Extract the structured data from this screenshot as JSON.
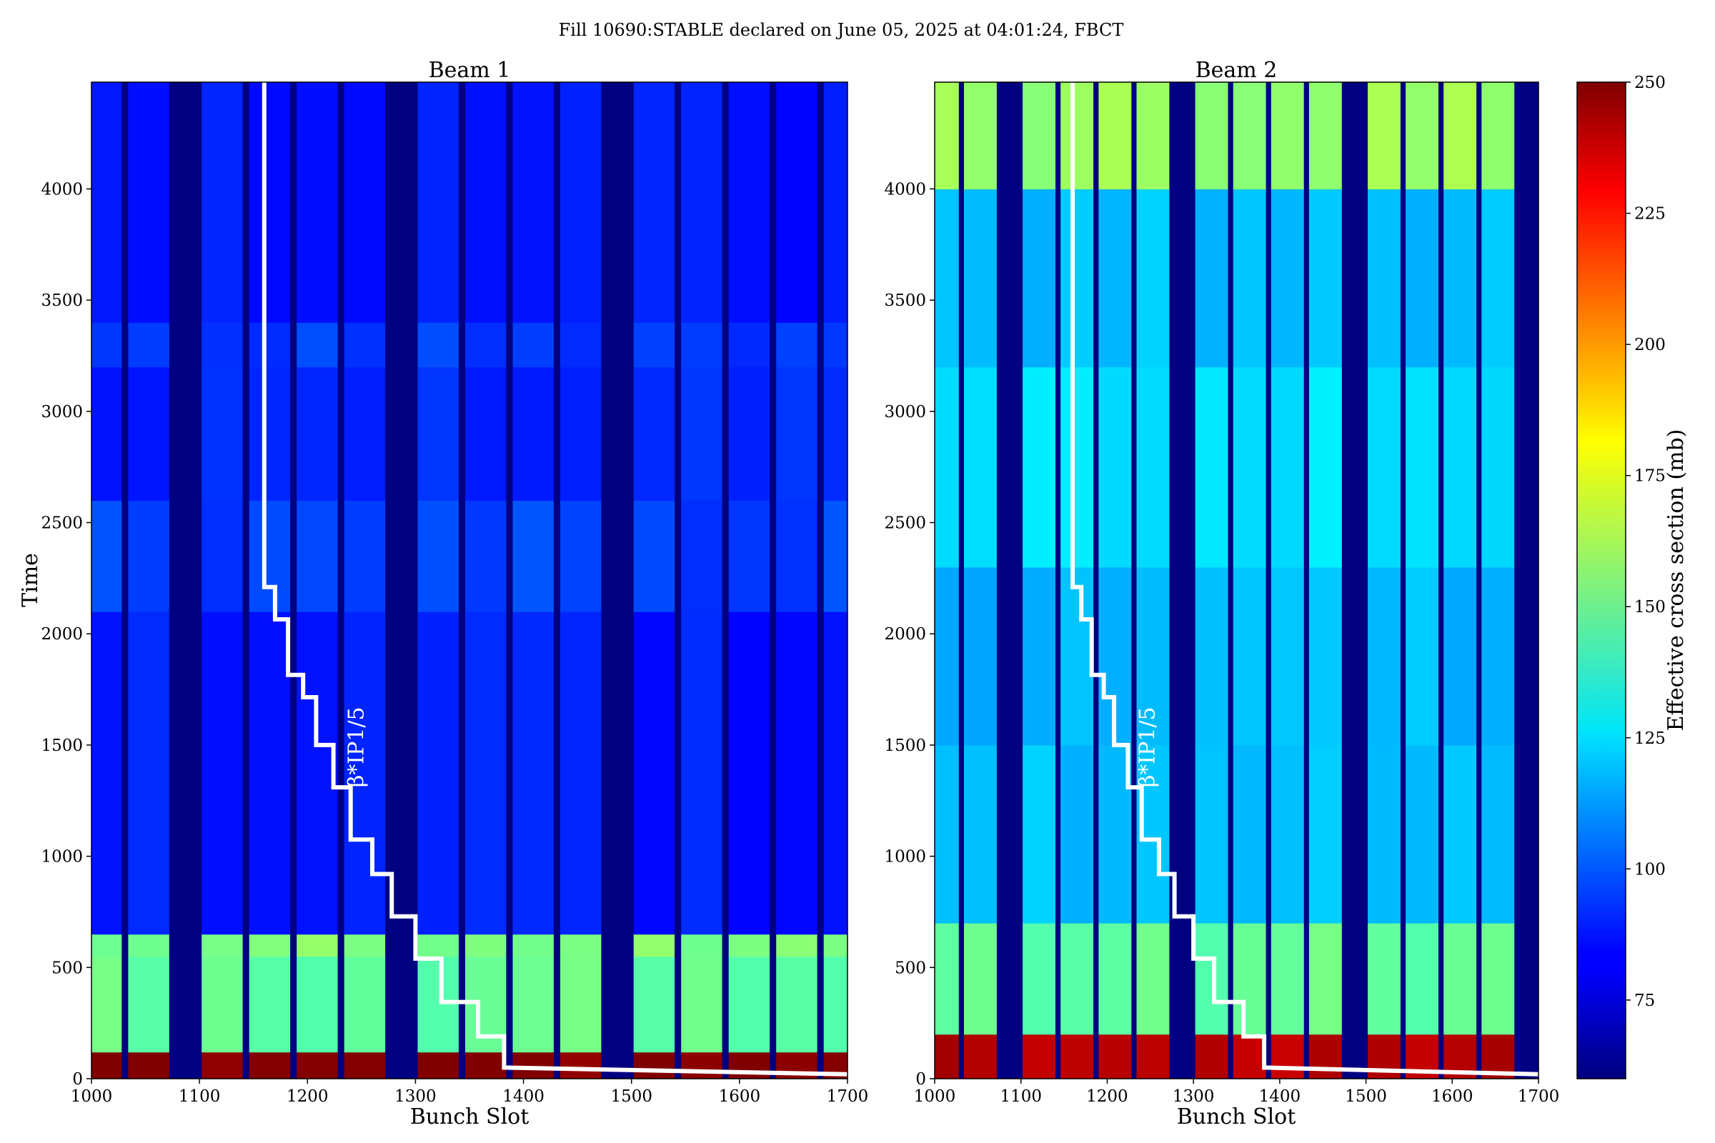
{
  "chart_data": {
    "type": "heatmap",
    "title": "Fill 10690:STABLE declared on June 05, 2025 at 04:01:24, FBCT",
    "colorbar": {
      "label": "Effective cross section (mb)",
      "range": [
        60,
        250
      ],
      "ticks": [
        75,
        100,
        125,
        150,
        175,
        200,
        225,
        250
      ],
      "colormap": "jet"
    },
    "panels": [
      {
        "title": "Beam 1",
        "xlabel": "Bunch Slot",
        "ylabel": "Time",
        "xlim": [
          1000,
          1700
        ],
        "ylim": [
          0,
          4480
        ],
        "xticks": [
          1000,
          1100,
          1200,
          1300,
          1400,
          1500,
          1600,
          1700
        ],
        "yticks": [
          0,
          500,
          1000,
          1500,
          2000,
          2500,
          3000,
          3500,
          4000
        ],
        "annotation": "β*IP1/5",
        "trains": [
          [
            1000,
            1028
          ],
          [
            1034,
            1072
          ],
          [
            1102,
            1140
          ],
          [
            1146,
            1184
          ],
          [
            1190,
            1228
          ],
          [
            1234,
            1272
          ],
          [
            1302,
            1340
          ],
          [
            1346,
            1384
          ],
          [
            1390,
            1428
          ],
          [
            1434,
            1472
          ],
          [
            1502,
            1540
          ],
          [
            1546,
            1584
          ],
          [
            1590,
            1628
          ],
          [
            1634,
            1672
          ],
          [
            1678,
            1700
          ]
        ],
        "levels": [
          {
            "t": 0,
            "v": 250
          },
          {
            "t": 120,
            "v": 150
          },
          {
            "t": 550,
            "v": 155
          },
          {
            "t": 650,
            "v": 88
          },
          {
            "t": 2100,
            "v": 96
          },
          {
            "t": 2600,
            "v": 90
          },
          {
            "t": 3200,
            "v": 95
          },
          {
            "t": 3400,
            "v": 88
          },
          {
            "t": 4480,
            "v": 88
          }
        ]
      },
      {
        "title": "Beam 2",
        "xlabel": "Bunch Slot",
        "ylabel": "",
        "xlim": [
          1000,
          1700
        ],
        "ylim": [
          0,
          4480
        ],
        "xticks": [
          1000,
          1100,
          1200,
          1300,
          1400,
          1500,
          1600,
          1700
        ],
        "yticks": [
          0,
          500,
          1000,
          1500,
          2000,
          2500,
          3000,
          3500,
          4000
        ],
        "annotation": "β*IP1/5",
        "trains": [
          [
            1000,
            1028
          ],
          [
            1034,
            1072
          ],
          [
            1102,
            1140
          ],
          [
            1146,
            1184
          ],
          [
            1190,
            1228
          ],
          [
            1234,
            1272
          ],
          [
            1302,
            1340
          ],
          [
            1346,
            1384
          ],
          [
            1390,
            1428
          ],
          [
            1434,
            1472
          ],
          [
            1502,
            1540
          ],
          [
            1546,
            1584
          ],
          [
            1590,
            1628
          ],
          [
            1634,
            1672
          ]
        ],
        "levels": [
          {
            "t": 0,
            "v": 240
          },
          {
            "t": 200,
            "v": 150
          },
          {
            "t": 700,
            "v": 120
          },
          {
            "t": 1500,
            "v": 118
          },
          {
            "t": 2300,
            "v": 125
          },
          {
            "t": 3200,
            "v": 120
          },
          {
            "t": 4000,
            "v": 160
          },
          {
            "t": 4480,
            "v": 135
          }
        ]
      }
    ],
    "beta_star_step_line": {
      "x": [
        1160,
        1160,
        1170,
        1170,
        1182,
        1182,
        1196,
        1196,
        1208,
        1208,
        1224,
        1224,
        1240,
        1240,
        1260,
        1260,
        1278,
        1278,
        1300,
        1300,
        1324,
        1324,
        1358,
        1358,
        1382,
        1382,
        1700
      ],
      "y": [
        4480,
        2210,
        2210,
        2065,
        2065,
        1815,
        1815,
        1715,
        1715,
        1500,
        1500,
        1310,
        1310,
        1075,
        1075,
        920,
        920,
        730,
        730,
        540,
        540,
        345,
        345,
        190,
        190,
        50,
        20
      ]
    }
  }
}
